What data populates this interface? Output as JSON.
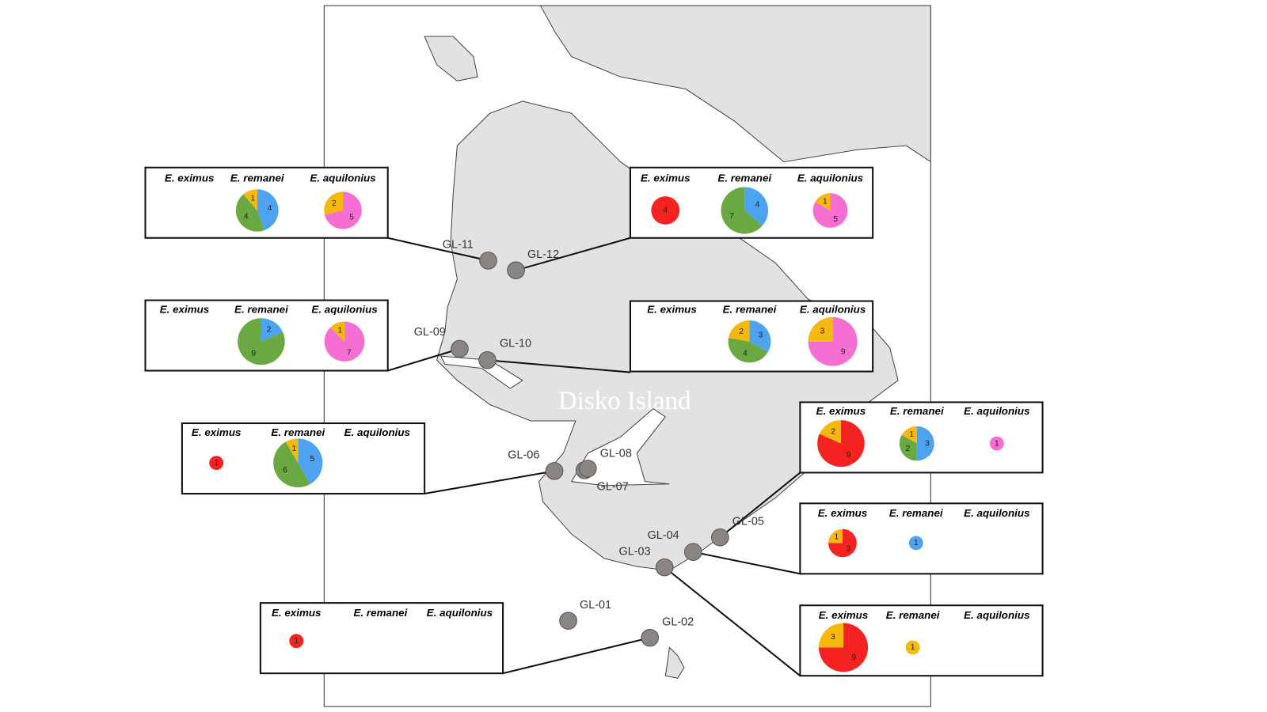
{
  "map_label": "Disko Island",
  "sites": [
    "GL-01",
    "GL-02",
    "GL-03",
    "GL-04",
    "GL-05",
    "GL-06",
    "GL-07",
    "GL-08",
    "GL-09",
    "GL-10",
    "GL-11",
    "GL-12"
  ],
  "panels": [
    {
      "species": [
        {
          "name": "E. eximus",
          "slices": []
        },
        {
          "name": "E. remanei",
          "slices": [
            {
              "value": 4,
              "color": "#4da3f0"
            },
            {
              "value": 4,
              "color": "#6aa842"
            },
            {
              "value": 1,
              "color": "#f5b80c"
            }
          ]
        },
        {
          "name": "E. aquilonius",
          "slices": [
            {
              "value": 5,
              "color": "#f56fd2"
            },
            {
              "value": 2,
              "color": "#f5b80c"
            }
          ]
        }
      ]
    },
    {
      "species": [
        {
          "name": "E. eximus",
          "slices": [
            {
              "value": 4,
              "color": "#f52222"
            }
          ]
        },
        {
          "name": "E. remanei",
          "slices": [
            {
              "value": 4,
              "color": "#4da3f0"
            },
            {
              "value": 7,
              "color": "#6aa842"
            }
          ]
        },
        {
          "name": "E. aquilonius",
          "slices": [
            {
              "value": 5,
              "color": "#f56fd2"
            },
            {
              "value": 1,
              "color": "#f5b80c"
            }
          ]
        }
      ]
    },
    {
      "species": [
        {
          "name": "E. eximus",
          "slices": []
        },
        {
          "name": "E. remanei",
          "slices": [
            {
              "value": 2,
              "color": "#4da3f0"
            },
            {
              "value": 9,
              "color": "#6aa842"
            }
          ]
        },
        {
          "name": "E. aquilonius",
          "slices": [
            {
              "value": 7,
              "color": "#f56fd2"
            },
            {
              "value": 1,
              "color": "#f5b80c"
            }
          ]
        }
      ]
    },
    {
      "species": [
        {
          "name": "E. eximus",
          "slices": []
        },
        {
          "name": "E. remanei",
          "slices": [
            {
              "value": 3,
              "color": "#4da3f0"
            },
            {
              "value": 4,
              "color": "#6aa842"
            },
            {
              "value": 2,
              "color": "#f5b80c"
            }
          ]
        },
        {
          "name": "E. aquilonius",
          "slices": [
            {
              "value": 9,
              "color": "#f56fd2"
            },
            {
              "value": 3,
              "color": "#f5b80c"
            }
          ]
        }
      ]
    },
    {
      "species": [
        {
          "name": "E. eximus",
          "slices": [
            {
              "value": 1,
              "color": "#f52222"
            }
          ]
        },
        {
          "name": "E. remanei",
          "slices": [
            {
              "value": 5,
              "color": "#4da3f0"
            },
            {
              "value": 6,
              "color": "#6aa842"
            },
            {
              "value": 1,
              "color": "#f5b80c"
            }
          ]
        },
        {
          "name": "E. aquilonius",
          "slices": []
        }
      ]
    },
    {
      "species": [
        {
          "name": "E. eximus",
          "slices": [
            {
              "value": 9,
              "color": "#f52222"
            },
            {
              "value": 2,
              "color": "#f5b80c"
            }
          ]
        },
        {
          "name": "E. remanei",
          "slices": [
            {
              "value": 3,
              "color": "#4da3f0"
            },
            {
              "value": 2,
              "color": "#6aa842"
            },
            {
              "value": 1,
              "color": "#f5b80c"
            }
          ]
        },
        {
          "name": "E. aquilonius",
          "slices": [
            {
              "value": 1,
              "color": "#f56fd2"
            }
          ]
        }
      ]
    },
    {
      "species": [
        {
          "name": "E. eximus",
          "slices": [
            {
              "value": 3,
              "color": "#f52222"
            },
            {
              "value": 1,
              "color": "#f5b80c"
            }
          ]
        },
        {
          "name": "E. remanei",
          "slices": [
            {
              "value": 1,
              "color": "#4da3f0"
            }
          ]
        },
        {
          "name": "E. aquilonius",
          "slices": []
        }
      ]
    },
    {
      "species": [
        {
          "name": "E. eximus",
          "slices": [
            {
              "value": 9,
              "color": "#f52222"
            },
            {
              "value": 3,
              "color": "#f5b80c"
            }
          ]
        },
        {
          "name": "E. remanei",
          "slices": [
            {
              "value": 1,
              "color": "#f5b80c"
            }
          ]
        },
        {
          "name": "E. aquilonius",
          "slices": []
        }
      ]
    },
    {
      "species": [
        {
          "name": "E. eximus",
          "slices": [
            {
              "value": 1,
              "color": "#f52222"
            }
          ]
        },
        {
          "name": "E. remanei",
          "slices": []
        },
        {
          "name": "E. aquilonius",
          "slices": []
        }
      ]
    }
  ]
}
